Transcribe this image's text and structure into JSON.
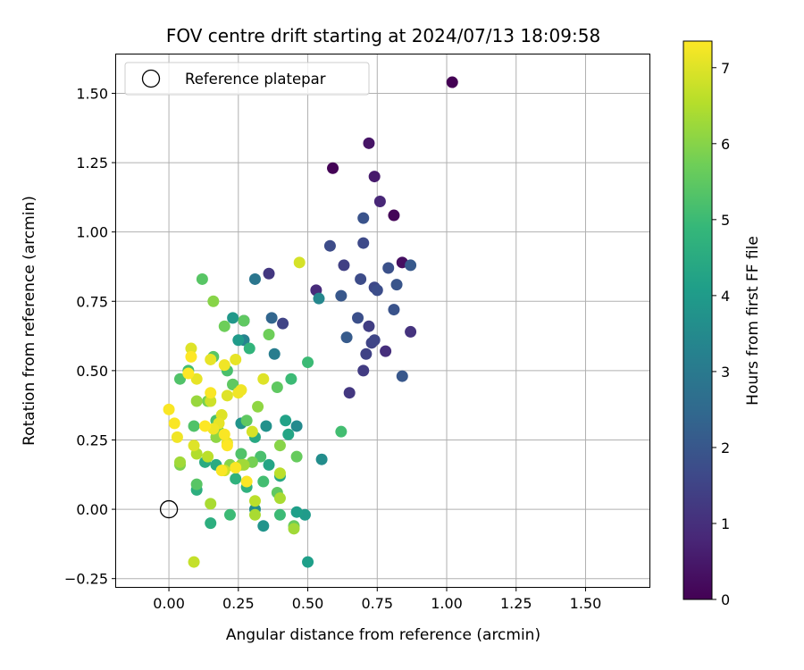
{
  "chart_data": {
    "type": "scatter",
    "title": "FOV centre drift starting at 2024/07/13 18:09:58",
    "xlabel": "Angular distance from reference (arcmin)",
    "ylabel": "Rotation from reference (arcmin)",
    "xlim": [
      -0.19,
      1.73
    ],
    "ylim": [
      -0.28,
      1.64
    ],
    "xticks": [
      "0.00",
      "0.25",
      "0.50",
      "0.75",
      "1.00",
      "1.25",
      "1.50"
    ],
    "xtick_values": [
      0,
      0.25,
      0.5,
      0.75,
      1.0,
      1.25,
      1.5
    ],
    "yticks": [
      "−0.25",
      "0.00",
      "0.25",
      "0.50",
      "0.75",
      "1.00",
      "1.25",
      "1.50"
    ],
    "ytick_values": [
      -0.25,
      0,
      0.25,
      0.5,
      0.75,
      1.0,
      1.25,
      1.5
    ],
    "grid": true,
    "legend": {
      "placement": "top-left",
      "entries": [
        {
          "label": "Reference platepar",
          "marker": "hollow-circle"
        }
      ]
    },
    "reference_point": {
      "x": 0.0,
      "y": 0.0
    },
    "colorbar": {
      "label": "Hours from first FF file",
      "range": [
        0,
        7.35
      ],
      "ticks": [
        "0",
        "1",
        "2",
        "3",
        "4",
        "5",
        "6",
        "7"
      ],
      "tick_values": [
        0,
        1,
        2,
        3,
        4,
        5,
        6,
        7
      ],
      "colormap": "viridis",
      "colors": [
        "#440154",
        "#482878",
        "#3e4989",
        "#31688e",
        "#26828e",
        "#1f9e89",
        "#35b779",
        "#6ece58",
        "#b5de2b",
        "#fde725"
      ]
    },
    "points": [
      {
        "x": 1.02,
        "y": 1.54,
        "h": 0.0
      },
      {
        "x": 0.59,
        "y": 1.23,
        "h": 0.05
      },
      {
        "x": 0.81,
        "y": 1.06,
        "h": 0.1
      },
      {
        "x": 0.84,
        "y": 0.89,
        "h": 0.3
      },
      {
        "x": 0.72,
        "y": 1.32,
        "h": 0.4
      },
      {
        "x": 0.74,
        "y": 1.2,
        "h": 0.55
      },
      {
        "x": 0.76,
        "y": 1.11,
        "h": 0.8
      },
      {
        "x": 0.53,
        "y": 0.79,
        "h": 0.9
      },
      {
        "x": 0.78,
        "y": 0.57,
        "h": 1.0
      },
      {
        "x": 0.87,
        "y": 0.64,
        "h": 1.1
      },
      {
        "x": 0.65,
        "y": 0.42,
        "h": 1.2
      },
      {
        "x": 0.7,
        "y": 0.5,
        "h": 1.3
      },
      {
        "x": 0.72,
        "y": 0.66,
        "h": 1.35
      },
      {
        "x": 0.63,
        "y": 0.88,
        "h": 1.4
      },
      {
        "x": 0.71,
        "y": 0.56,
        "h": 1.45
      },
      {
        "x": 0.73,
        "y": 0.6,
        "h": 1.5
      },
      {
        "x": 0.74,
        "y": 0.61,
        "h": 1.55
      },
      {
        "x": 0.74,
        "y": 0.8,
        "h": 1.6
      },
      {
        "x": 0.7,
        "y": 0.96,
        "h": 1.65
      },
      {
        "x": 0.69,
        "y": 0.83,
        "h": 1.7
      },
      {
        "x": 0.75,
        "y": 0.79,
        "h": 1.75
      },
      {
        "x": 0.68,
        "y": 0.69,
        "h": 1.8
      },
      {
        "x": 0.79,
        "y": 0.87,
        "h": 1.85
      },
      {
        "x": 0.81,
        "y": 0.72,
        "h": 1.9
      },
      {
        "x": 0.82,
        "y": 0.81,
        "h": 1.95
      },
      {
        "x": 0.84,
        "y": 0.48,
        "h": 2.0
      },
      {
        "x": 0.87,
        "y": 0.88,
        "h": 2.05
      },
      {
        "x": 0.36,
        "y": 0.85,
        "h": 1.2
      },
      {
        "x": 0.41,
        "y": 0.67,
        "h": 1.5
      },
      {
        "x": 0.58,
        "y": 0.95,
        "h": 1.7
      },
      {
        "x": 0.7,
        "y": 1.05,
        "h": 1.9
      },
      {
        "x": 0.62,
        "y": 0.77,
        "h": 2.0
      },
      {
        "x": 0.64,
        "y": 0.62,
        "h": 2.1
      },
      {
        "x": 0.27,
        "y": 0.68,
        "h": 1.6
      },
      {
        "x": 0.37,
        "y": 0.69,
        "h": 2.4
      },
      {
        "x": 0.31,
        "y": 0.83,
        "h": 2.9
      },
      {
        "x": 0.38,
        "y": 0.56,
        "h": 3.1
      },
      {
        "x": 0.27,
        "y": 0.61,
        "h": 3.3
      },
      {
        "x": 0.54,
        "y": 0.76,
        "h": 3.4
      },
      {
        "x": 0.46,
        "y": 0.3,
        "h": 3.5
      },
      {
        "x": 0.55,
        "y": 0.18,
        "h": 3.6
      },
      {
        "x": 0.31,
        "y": 0.0,
        "h": 3.6
      },
      {
        "x": 0.35,
        "y": 0.3,
        "h": 3.7
      },
      {
        "x": 0.34,
        "y": -0.06,
        "h": 3.8
      },
      {
        "x": 0.26,
        "y": 0.31,
        "h": 3.8
      },
      {
        "x": 0.23,
        "y": 0.69,
        "h": 3.9
      },
      {
        "x": 0.25,
        "y": 0.61,
        "h": 4.0
      },
      {
        "x": 0.49,
        "y": -0.02,
        "h": 4.0
      },
      {
        "x": 0.46,
        "y": -0.01,
        "h": 4.1
      },
      {
        "x": 0.5,
        "y": -0.19,
        "h": 4.1
      },
      {
        "x": 0.42,
        "y": 0.32,
        "h": 4.2
      },
      {
        "x": 0.43,
        "y": 0.27,
        "h": 4.3
      },
      {
        "x": 0.36,
        "y": 0.16,
        "h": 4.3
      },
      {
        "x": 0.4,
        "y": 0.12,
        "h": 4.4
      },
      {
        "x": 0.31,
        "y": 0.26,
        "h": 4.4
      },
      {
        "x": 0.17,
        "y": 0.16,
        "h": 4.5
      },
      {
        "x": 0.13,
        "y": 0.17,
        "h": 4.5
      },
      {
        "x": 0.15,
        "y": -0.05,
        "h": 4.6
      },
      {
        "x": 0.1,
        "y": 0.07,
        "h": 4.6
      },
      {
        "x": 0.24,
        "y": 0.11,
        "h": 4.7
      },
      {
        "x": 0.28,
        "y": 0.08,
        "h": 4.7
      },
      {
        "x": 0.22,
        "y": 0.16,
        "h": 4.8
      },
      {
        "x": 0.29,
        "y": 0.58,
        "h": 4.8
      },
      {
        "x": 0.23,
        "y": 0.45,
        "h": 4.9
      },
      {
        "x": 0.44,
        "y": 0.47,
        "h": 5.0
      },
      {
        "x": 0.4,
        "y": -0.02,
        "h": 5.0
      },
      {
        "x": 0.22,
        "y": -0.02,
        "h": 5.0
      },
      {
        "x": 0.5,
        "y": 0.53,
        "h": 5.0
      },
      {
        "x": 0.62,
        "y": 0.28,
        "h": 5.1
      },
      {
        "x": 0.34,
        "y": 0.1,
        "h": 5.1
      },
      {
        "x": 0.07,
        "y": 0.5,
        "h": 5.1
      },
      {
        "x": 0.17,
        "y": 0.32,
        "h": 5.2
      },
      {
        "x": 0.21,
        "y": 0.5,
        "h": 5.2
      },
      {
        "x": 0.33,
        "y": 0.19,
        "h": 5.2
      },
      {
        "x": 0.04,
        "y": 0.47,
        "h": 5.3
      },
      {
        "x": 0.26,
        "y": 0.2,
        "h": 5.3
      },
      {
        "x": 0.09,
        "y": 0.3,
        "h": 5.3
      },
      {
        "x": 0.12,
        "y": 0.83,
        "h": 5.4
      },
      {
        "x": 0.1,
        "y": 0.09,
        "h": 5.4
      },
      {
        "x": 0.16,
        "y": 0.55,
        "h": 5.4
      },
      {
        "x": 0.39,
        "y": 0.44,
        "h": 5.5
      },
      {
        "x": 0.27,
        "y": 0.68,
        "h": 5.5
      },
      {
        "x": 0.39,
        "y": 0.06,
        "h": 5.5
      },
      {
        "x": 0.23,
        "y": 0.45,
        "h": 5.5
      },
      {
        "x": 0.28,
        "y": 0.32,
        "h": 5.5
      },
      {
        "x": 0.45,
        "y": -0.06,
        "h": 5.6
      },
      {
        "x": 0.46,
        "y": 0.19,
        "h": 5.6
      },
      {
        "x": 0.36,
        "y": 0.63,
        "h": 5.7
      },
      {
        "x": 0.2,
        "y": 0.66,
        "h": 5.7
      },
      {
        "x": 0.14,
        "y": 0.39,
        "h": 5.8
      },
      {
        "x": 0.3,
        "y": 0.17,
        "h": 5.8
      },
      {
        "x": 0.18,
        "y": 0.28,
        "h": 5.8
      },
      {
        "x": 0.04,
        "y": 0.16,
        "h": 5.9
      },
      {
        "x": 0.16,
        "y": 0.75,
        "h": 6.0
      },
      {
        "x": 0.22,
        "y": 0.16,
        "h": 6.0
      },
      {
        "x": 0.4,
        "y": 0.23,
        "h": 6.0
      },
      {
        "x": 0.32,
        "y": 0.37,
        "h": 6.1
      },
      {
        "x": 0.17,
        "y": 0.26,
        "h": 6.1
      },
      {
        "x": 0.26,
        "y": 0.16,
        "h": 6.2
      },
      {
        "x": 0.1,
        "y": 0.39,
        "h": 6.2
      },
      {
        "x": 0.45,
        "y": -0.07,
        "h": 6.3
      },
      {
        "x": 0.27,
        "y": 0.16,
        "h": 6.3
      },
      {
        "x": 0.04,
        "y": 0.17,
        "h": 6.3
      },
      {
        "x": 0.31,
        "y": -0.02,
        "h": 6.4
      },
      {
        "x": 0.15,
        "y": 0.02,
        "h": 6.4
      },
      {
        "x": 0.4,
        "y": 0.04,
        "h": 6.4
      },
      {
        "x": 0.1,
        "y": 0.2,
        "h": 6.5
      },
      {
        "x": 0.14,
        "y": 0.19,
        "h": 6.6
      },
      {
        "x": 0.31,
        "y": 0.03,
        "h": 6.6
      },
      {
        "x": 0.4,
        "y": 0.13,
        "h": 6.6
      },
      {
        "x": 0.09,
        "y": -0.19,
        "h": 6.7
      },
      {
        "x": 0.15,
        "y": 0.39,
        "h": 6.8
      },
      {
        "x": 0.2,
        "y": 0.14,
        "h": 6.8
      },
      {
        "x": 0.3,
        "y": 0.28,
        "h": 6.9
      },
      {
        "x": 0.47,
        "y": 0.89,
        "h": 6.9
      },
      {
        "x": 0.21,
        "y": 0.41,
        "h": 7.0
      },
      {
        "x": 0.34,
        "y": 0.47,
        "h": 7.0
      },
      {
        "x": 0.19,
        "y": 0.34,
        "h": 7.0
      },
      {
        "x": 0.08,
        "y": 0.58,
        "h": 7.0
      },
      {
        "x": 0.09,
        "y": 0.23,
        "h": 7.0
      },
      {
        "x": 0.18,
        "y": 0.31,
        "h": 7.1
      },
      {
        "x": 0.24,
        "y": 0.54,
        "h": 7.1
      },
      {
        "x": 0.15,
        "y": 0.54,
        "h": 7.1
      },
      {
        "x": 0.1,
        "y": 0.47,
        "h": 7.1
      },
      {
        "x": 0.21,
        "y": 0.24,
        "h": 7.1
      },
      {
        "x": 0.2,
        "y": 0.52,
        "h": 7.2
      },
      {
        "x": 0.25,
        "y": 0.42,
        "h": 7.2
      },
      {
        "x": 0.26,
        "y": 0.43,
        "h": 7.2
      },
      {
        "x": 0.16,
        "y": 0.29,
        "h": 7.2
      },
      {
        "x": 0.03,
        "y": 0.26,
        "h": 7.2
      },
      {
        "x": 0.02,
        "y": 0.31,
        "h": 7.3
      },
      {
        "x": 0.0,
        "y": 0.36,
        "h": 7.3
      },
      {
        "x": 0.15,
        "y": 0.42,
        "h": 7.3
      },
      {
        "x": 0.19,
        "y": 0.14,
        "h": 7.3
      },
      {
        "x": 0.28,
        "y": 0.1,
        "h": 7.3
      },
      {
        "x": 0.2,
        "y": 0.27,
        "h": 7.3
      },
      {
        "x": 0.24,
        "y": 0.15,
        "h": 7.3
      },
      {
        "x": 0.07,
        "y": 0.49,
        "h": 7.35
      },
      {
        "x": 0.08,
        "y": 0.55,
        "h": 7.35
      },
      {
        "x": 0.21,
        "y": 0.23,
        "h": 7.35
      },
      {
        "x": 0.13,
        "y": 0.3,
        "h": 7.35
      }
    ]
  }
}
